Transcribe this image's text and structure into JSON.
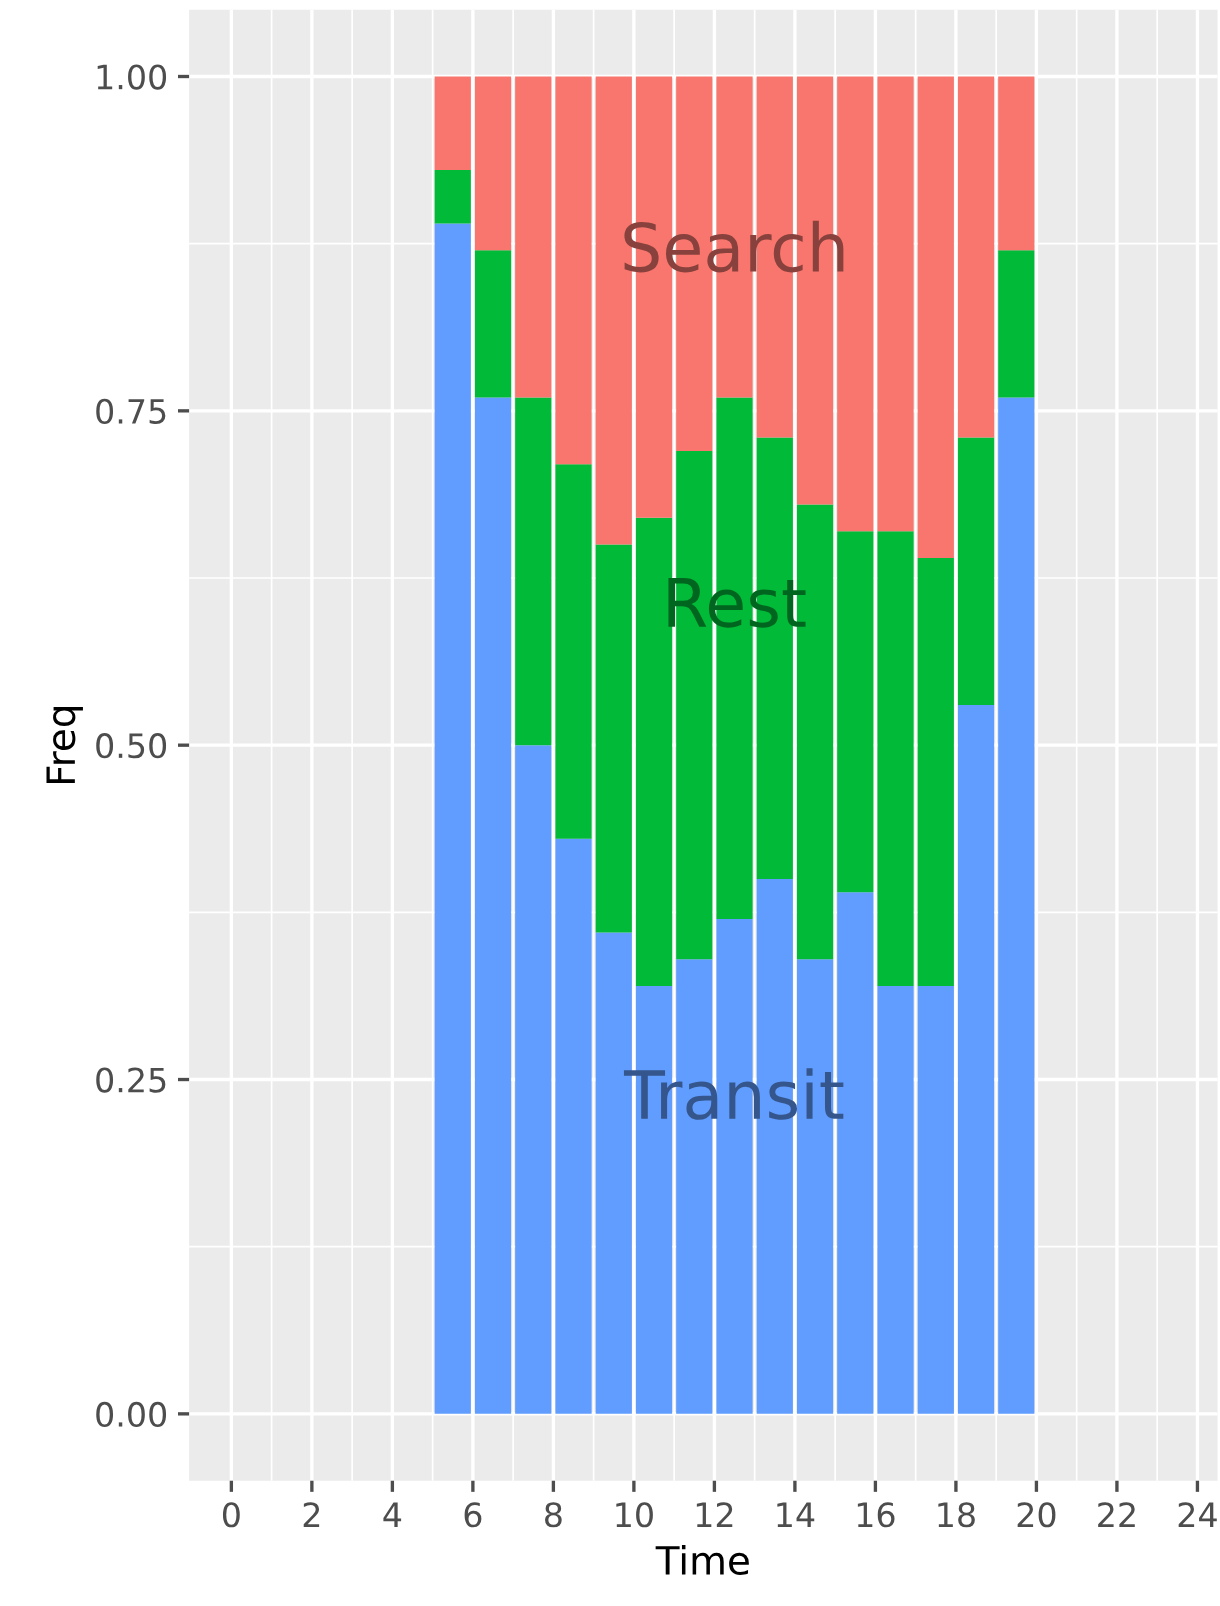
{
  "chart_data": {
    "type": "bar",
    "stacked": true,
    "xlabel": "Time",
    "ylabel": "Freq",
    "x": [
      5.5,
      6.5,
      7.5,
      8.5,
      9.5,
      10.5,
      11.5,
      12.5,
      13.5,
      14.5,
      15.5,
      16.5,
      17.5,
      18.5,
      19.5
    ],
    "series": [
      {
        "name": "Transit",
        "color": "#619cff",
        "values": [
          0.89,
          0.76,
          0.5,
          0.43,
          0.36,
          0.32,
          0.34,
          0.37,
          0.4,
          0.34,
          0.39,
          0.32,
          0.32,
          0.53,
          0.76
        ]
      },
      {
        "name": "Rest",
        "color": "#00ba38",
        "values": [
          0.04,
          0.11,
          0.26,
          0.28,
          0.29,
          0.35,
          0.38,
          0.39,
          0.33,
          0.34,
          0.27,
          0.34,
          0.32,
          0.2,
          0.11
        ]
      },
      {
        "name": "Search",
        "color": "#f8766d",
        "values": [
          0.07,
          0.13,
          0.24,
          0.29,
          0.35,
          0.33,
          0.28,
          0.24,
          0.27,
          0.32,
          0.34,
          0.34,
          0.36,
          0.27,
          0.13
        ]
      }
    ],
    "xlim": [
      -1.05,
      24.5
    ],
    "ylim": [
      -0.05,
      1.05
    ],
    "xticks": [
      0,
      2,
      4,
      6,
      8,
      10,
      12,
      14,
      16,
      18,
      20,
      22,
      24
    ],
    "yticks": [
      {
        "value": 0,
        "label": "0.00"
      },
      {
        "value": 0.25,
        "label": "0.25"
      },
      {
        "value": 0.5,
        "label": "0.50"
      },
      {
        "value": 0.75,
        "label": "0.75"
      },
      {
        "value": 1,
        "label": "1.00"
      }
    ],
    "grid": true,
    "legend": false
  }
}
